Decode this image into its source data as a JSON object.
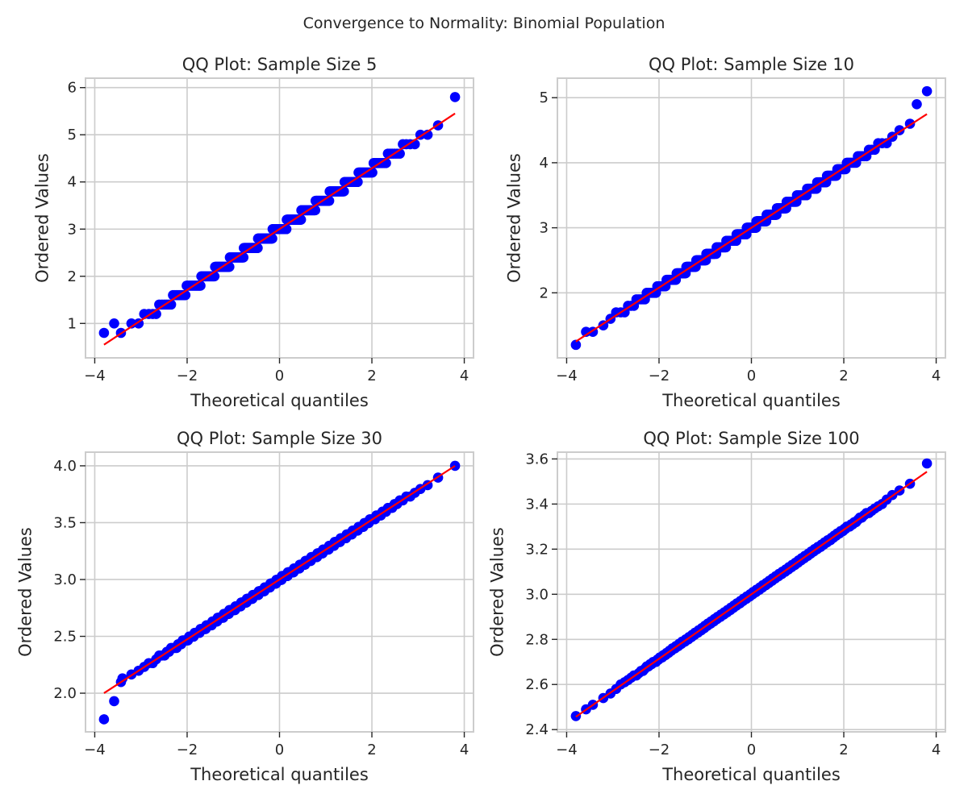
{
  "figure": {
    "suptitle": "Convergence to Normality: Binomial Population"
  },
  "style": {
    "point_color": "#0000ff",
    "fit_line_color": "#ff0000",
    "grid_color": "#cccccc",
    "spine_color": "#cccccc",
    "text_color": "#262626",
    "background": "#ffffff"
  },
  "chart_data": [
    {
      "type": "scatter",
      "title": "QQ Plot: Sample Size 5",
      "xlabel": "Theoretical quantiles",
      "ylabel": "Ordered Values",
      "xlim": [
        -4.2,
        4.2
      ],
      "ylim": [
        0.27,
        6.2
      ],
      "xticks": [
        -4,
        -2,
        0,
        2,
        4
      ],
      "xticklabels": [
        "−4",
        "−2",
        "0",
        "2",
        "4"
      ],
      "yticks": [
        1,
        2,
        3,
        4,
        5,
        6
      ],
      "yticklabels": [
        "1",
        "2",
        "3",
        "4",
        "5",
        "6"
      ],
      "grid": true,
      "population_mean": 3.0,
      "sample_size": 5,
      "discrete_step": 0.2,
      "fit_line": {
        "slope": 0.645,
        "intercept": 3.0,
        "x_range": [
          -3.8,
          3.8
        ]
      },
      "anchor_points": [
        [
          -3.8,
          0.8
        ],
        [
          -3.58,
          1.0
        ],
        [
          3.8,
          5.8
        ]
      ]
    },
    {
      "type": "scatter",
      "title": "QQ Plot: Sample Size 10",
      "xlabel": "Theoretical quantiles",
      "ylabel": "Ordered Values",
      "xlim": [
        -4.2,
        4.2
      ],
      "ylim": [
        1.0,
        5.3
      ],
      "xticks": [
        -4,
        -2,
        0,
        2,
        4
      ],
      "xticklabels": [
        "−4",
        "−2",
        "0",
        "2",
        "4"
      ],
      "yticks": [
        2,
        3,
        4,
        5
      ],
      "yticklabels": [
        "2",
        "3",
        "4",
        "5"
      ],
      "grid": true,
      "population_mean": 3.0,
      "sample_size": 10,
      "discrete_step": 0.1,
      "fit_line": {
        "slope": 0.46,
        "intercept": 3.0,
        "x_range": [
          -3.8,
          3.8
        ]
      },
      "anchor_points": [
        [
          -3.8,
          1.2
        ],
        [
          -3.58,
          1.4
        ],
        [
          3.58,
          4.9
        ],
        [
          3.8,
          5.1
        ]
      ]
    },
    {
      "type": "scatter",
      "title": "QQ Plot: Sample Size 30",
      "xlabel": "Theoretical quantiles",
      "ylabel": "Ordered Values",
      "xlim": [
        -4.2,
        4.2
      ],
      "ylim": [
        1.66,
        4.12
      ],
      "xticks": [
        -4,
        -2,
        0,
        2,
        4
      ],
      "xticklabels": [
        "−4",
        "−2",
        "0",
        "2",
        "4"
      ],
      "yticks": [
        2.0,
        2.5,
        3.0,
        3.5,
        4.0
      ],
      "yticklabels": [
        "2.0",
        "2.5",
        "3.0",
        "3.5",
        "4.0"
      ],
      "grid": true,
      "population_mean": 3.0,
      "sample_size": 30,
      "discrete_step": 0.0333,
      "fit_line": {
        "slope": 0.263,
        "intercept": 3.0,
        "x_range": [
          -3.8,
          3.8
        ]
      },
      "anchor_points": [
        [
          -3.8,
          1.77
        ],
        [
          -3.58,
          1.93
        ],
        [
          -3.4,
          2.13
        ],
        [
          3.8,
          4.0
        ]
      ]
    },
    {
      "type": "scatter",
      "title": "QQ Plot: Sample Size 100",
      "xlabel": "Theoretical quantiles",
      "ylabel": "Ordered Values",
      "xlim": [
        -4.2,
        4.2
      ],
      "ylim": [
        2.39,
        3.63
      ],
      "xticks": [
        -4,
        -2,
        0,
        2,
        4
      ],
      "xticklabels": [
        "−4",
        "−2",
        "0",
        "2",
        "4"
      ],
      "yticks": [
        2.4,
        2.6,
        2.8,
        3.0,
        3.2,
        3.4,
        3.6
      ],
      "yticklabels": [
        "2.4",
        "2.6",
        "2.8",
        "3.0",
        "3.2",
        "3.4",
        "3.6"
      ],
      "grid": true,
      "population_mean": 3.0,
      "sample_size": 100,
      "discrete_step": 0.01,
      "fit_line": {
        "slope": 0.143,
        "intercept": 3.0,
        "x_range": [
          -3.8,
          3.8
        ]
      },
      "anchor_points": [
        [
          -3.8,
          2.46
        ],
        [
          -3.58,
          2.49
        ],
        [
          3.8,
          3.58
        ]
      ]
    }
  ]
}
